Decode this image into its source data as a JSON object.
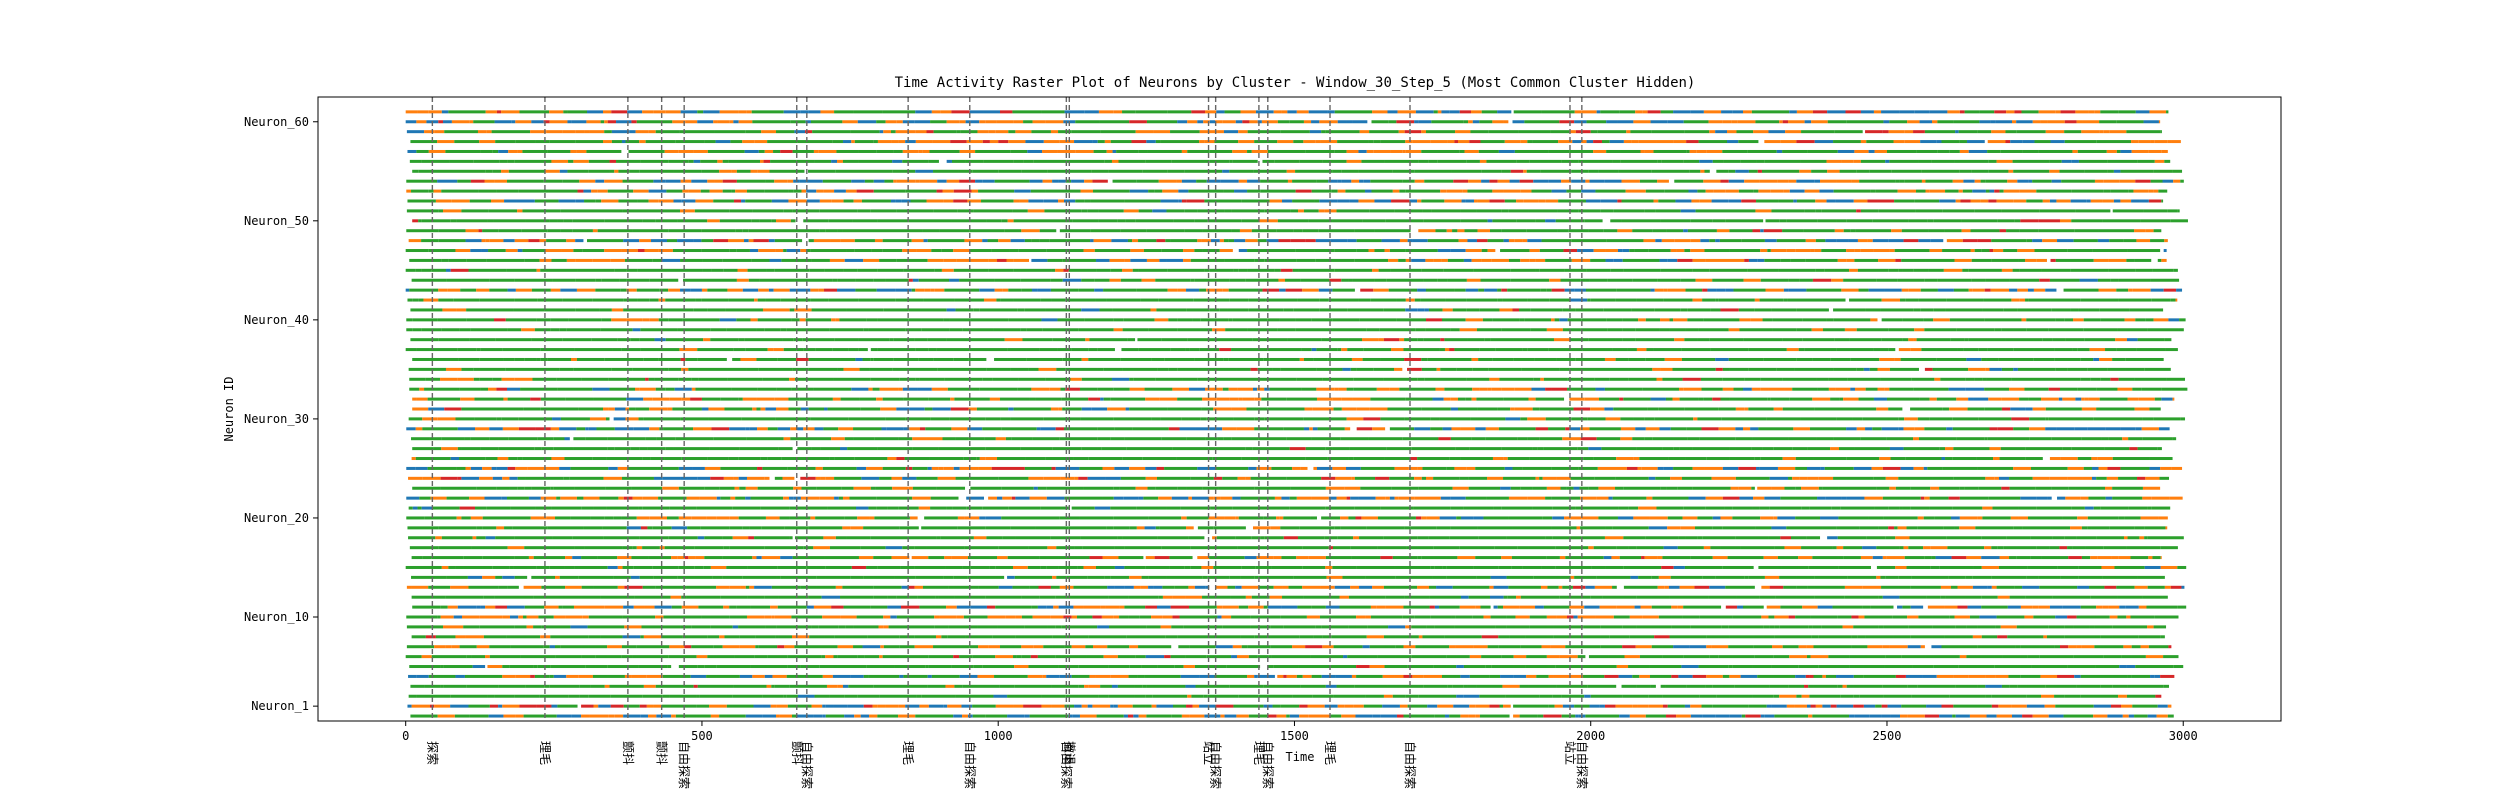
{
  "chart_data": {
    "type": "scatter",
    "title": "Time Activity Raster Plot of Neurons by Cluster - Window_30_Step_5 (Most Common Cluster Hidden)",
    "xlabel": "Time",
    "ylabel": "Neuron ID",
    "xlim": [
      -148,
      3165
    ],
    "ylim": [
      -0.5,
      62.5
    ],
    "x_ticks": [
      0,
      500,
      1000,
      1500,
      2000,
      2500,
      3000
    ],
    "y_ticks": [
      {
        "label": "Neuron_1",
        "value": 1
      },
      {
        "label": "Neuron_10",
        "value": 10
      },
      {
        "label": "Neuron_20",
        "value": 20
      },
      {
        "label": "Neuron_30",
        "value": 30
      },
      {
        "label": "Neuron_40",
        "value": 40
      },
      {
        "label": "Neuron_50",
        "value": 50
      },
      {
        "label": "Neuron_60",
        "value": 60
      }
    ],
    "neuron_count": 62,
    "cluster_colors": [
      "#2ca02c",
      "#ff7f0e",
      "#1f77b4",
      "#d62728"
    ],
    "grid": false,
    "events": [
      {
        "x": 45,
        "label": "探索"
      },
      {
        "x": 235,
        "label": "理毛"
      },
      {
        "x": 375,
        "label": "颤抖"
      },
      {
        "x": 432,
        "label": "颤抖"
      },
      {
        "x": 470,
        "label": "自由探索"
      },
      {
        "x": 660,
        "label": "颤抖"
      },
      {
        "x": 677,
        "label": "自由探索"
      },
      {
        "x": 848,
        "label": "理毛"
      },
      {
        "x": 952,
        "label": "自由探索"
      },
      {
        "x": 1115,
        "label": "自由探索"
      },
      {
        "x": 1120,
        "label": "撤退"
      },
      {
        "x": 1355,
        "label": "站立"
      },
      {
        "x": 1367,
        "label": "自由探索"
      },
      {
        "x": 1440,
        "label": "理毛"
      },
      {
        "x": 1455,
        "label": "自由探索"
      },
      {
        "x": 1560,
        "label": "理毛"
      },
      {
        "x": 1695,
        "label": "自由探索"
      },
      {
        "x": 1965,
        "label": "站立"
      },
      {
        "x": 1985,
        "label": "自由探索"
      }
    ]
  }
}
